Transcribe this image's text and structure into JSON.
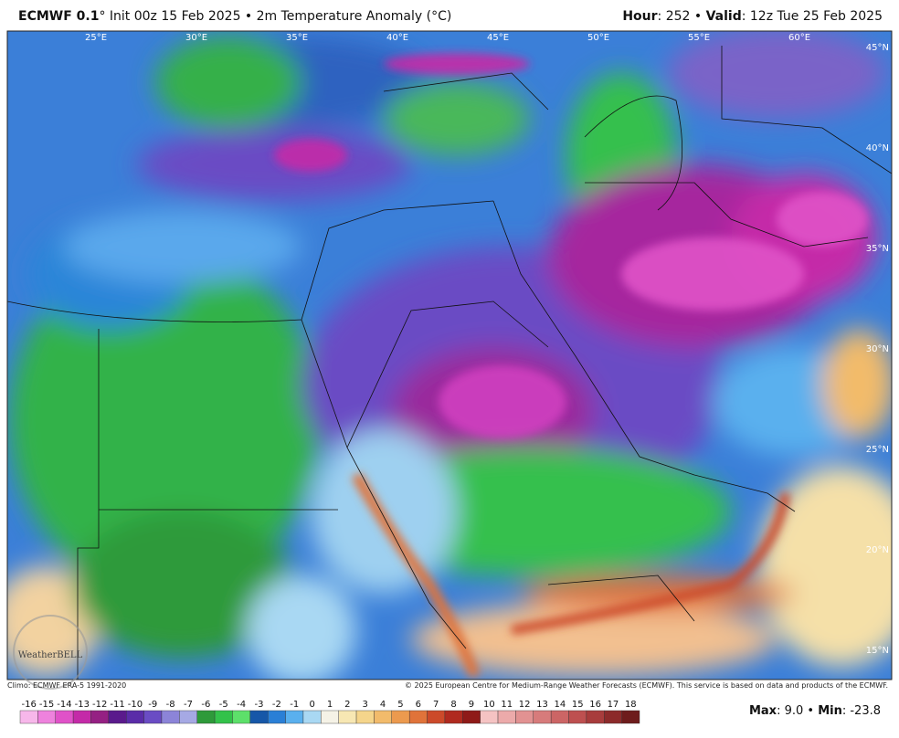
{
  "header": {
    "left": [
      {
        "text": "ECMWF 0.1",
        "bold": true
      },
      {
        "text": "° Init 00z 15 Feb 2025 • 2m Temperature Anomaly (°C)",
        "bold": false
      }
    ],
    "right": [
      {
        "text": "Hour",
        "bold": true
      },
      {
        "text": ": 252 • ",
        "bold": false
      },
      {
        "text": "Valid",
        "bold": true
      },
      {
        "text": ": 12z Tue 25 Feb 2025",
        "bold": false
      }
    ]
  },
  "map": {
    "lon_labels": [
      "25°E",
      "30°E",
      "35°E",
      "40°E",
      "45°E",
      "50°E",
      "55°E",
      "60°E"
    ],
    "lat_labels": [
      "45°N",
      "40°N",
      "35°N",
      "30°N",
      "25°N",
      "20°N",
      "15°N"
    ],
    "logo": "WeatherBELL"
  },
  "footer": {
    "climo": "Climo: ECMWF ERA-5 1991-2020",
    "copyright": "© 2025 European Centre for Medium-Range Weather Forecasts (ECMWF). This service is based on data and products of the ECMWF.",
    "stats": [
      {
        "text": "Max",
        "bold": true
      },
      {
        "text": ": 9.0 • ",
        "bold": false
      },
      {
        "text": "Min",
        "bold": true
      },
      {
        "text": ": -23.8",
        "bold": false
      }
    ]
  },
  "colorbar": {
    "ticks": [
      -16,
      -15,
      -14,
      -13,
      -12,
      -11,
      -10,
      -9,
      -8,
      -7,
      -6,
      -5,
      -4,
      -3,
      -2,
      -1,
      0,
      1,
      2,
      3,
      4,
      5,
      6,
      7,
      8,
      9,
      10,
      11,
      12,
      13,
      14,
      15,
      16,
      17,
      18
    ],
    "colors": [
      "#f7b7ea",
      "#ee82dd",
      "#e052c8",
      "#c42aa8",
      "#952083",
      "#5a1a8c",
      "#5a2ca8",
      "#6a4cc4",
      "#8c84d8",
      "#a6a9e4",
      "#2e9a3a",
      "#33c24a",
      "#5de06a",
      "#1657a8",
      "#2a7fd6",
      "#5ab0ee",
      "#a9d8f3",
      "#f5f2e6",
      "#f7e7b3",
      "#f5d58b",
      "#f2bb6b",
      "#ec9a4e",
      "#e0733a",
      "#cc4a2a",
      "#b02a1f",
      "#8f1a18",
      "#f5c3c3",
      "#ecaaaa",
      "#e29292",
      "#d77b7b",
      "#cc6565",
      "#be5050",
      "#a83c3c",
      "#8c2a2a",
      "#6e1c1c"
    ]
  }
}
